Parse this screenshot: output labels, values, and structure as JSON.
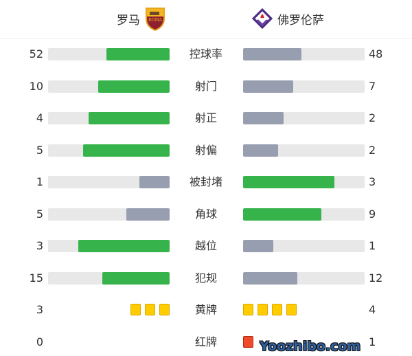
{
  "home": {
    "name": "罗马",
    "logo_text": "ROMA"
  },
  "away": {
    "name": "佛罗伦萨"
  },
  "colors": {
    "leader": "#36b34a",
    "trailer": "#979eaf",
    "track": "#e8e8e8",
    "yellow": "#ffcc00",
    "red": "#f04a2a"
  },
  "stats": [
    {
      "label": "控球率",
      "home": 52,
      "away": 48
    },
    {
      "label": "射门",
      "home": 10,
      "away": 7
    },
    {
      "label": "射正",
      "home": 4,
      "away": 2
    },
    {
      "label": "射偏",
      "home": 5,
      "away": 2
    },
    {
      "label": "被封堵",
      "home": 1,
      "away": 3
    },
    {
      "label": "角球",
      "home": 5,
      "away": 9
    },
    {
      "label": "越位",
      "home": 3,
      "away": 1
    },
    {
      "label": "犯规",
      "home": 15,
      "away": 12
    }
  ],
  "cards": [
    {
      "label": "黄牌",
      "home": 3,
      "away": 4,
      "type": "yellow"
    },
    {
      "label": "红牌",
      "home": 0,
      "away": 1,
      "type": "red"
    }
  ],
  "watermark": "Yoozhibo.com"
}
